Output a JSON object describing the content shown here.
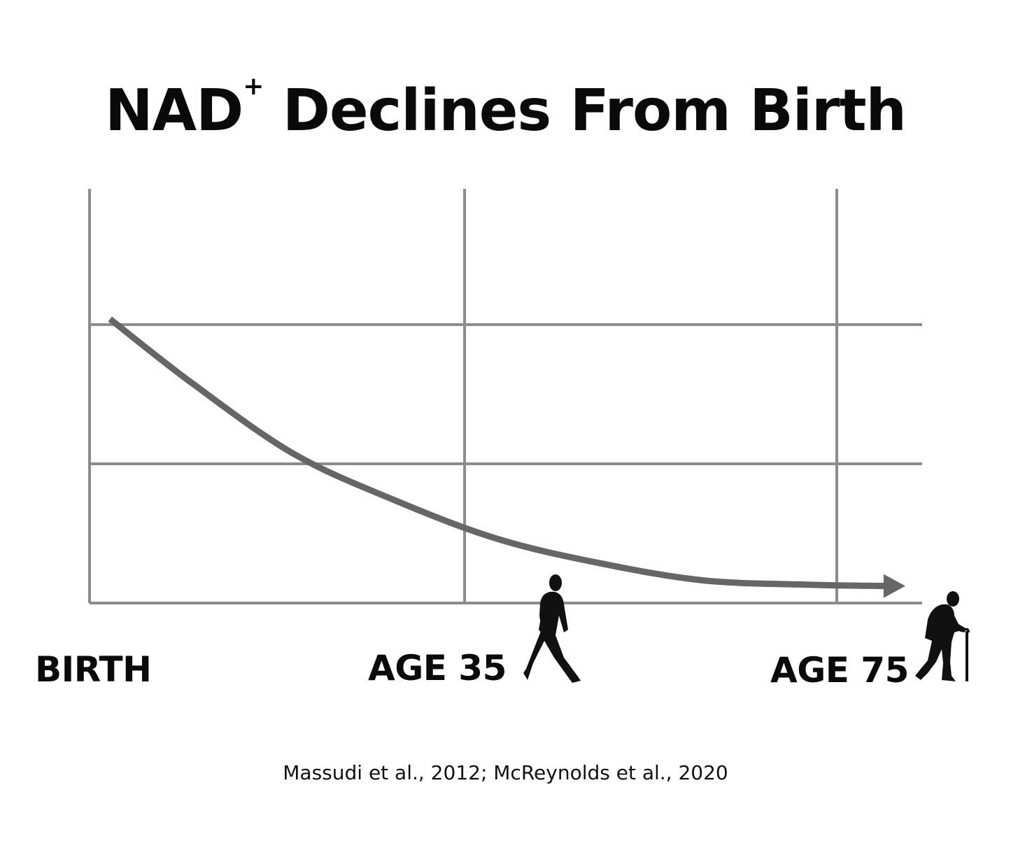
{
  "title": {
    "main": "NAD",
    "superscript": "+",
    "rest": " Declines From Birth"
  },
  "citation": "Massudi et al., 2012; McReynolds et al., 2020",
  "chart_data": {
    "type": "line",
    "title": "NAD+ Declines From Birth",
    "xlabel": "",
    "ylabel": "",
    "grid": true,
    "x_tick_labels": [
      "BIRTH",
      "AGE 35",
      "AGE 75"
    ],
    "y_tick_labels": [],
    "series": [
      {
        "points": [
          {
            "x": 2,
            "y": 2.0
          },
          {
            "x": 10,
            "y": 1.55
          },
          {
            "x": 20,
            "y": 1.05
          },
          {
            "x": 30,
            "y": 0.72
          },
          {
            "x": 40,
            "y": 0.45
          },
          {
            "x": 50,
            "y": 0.28
          },
          {
            "x": 60,
            "y": 0.16
          },
          {
            "x": 70,
            "y": 0.13
          },
          {
            "x": 78,
            "y": 0.12
          }
        ],
        "color": "#666666",
        "arrow_end": true
      }
    ],
    "colors": {
      "grid": "#8c8c8c",
      "line": "#666666",
      "silhouette": "#111111"
    },
    "icons": [
      "walking-man-icon",
      "elderly-man-with-cane-icon"
    ]
  }
}
